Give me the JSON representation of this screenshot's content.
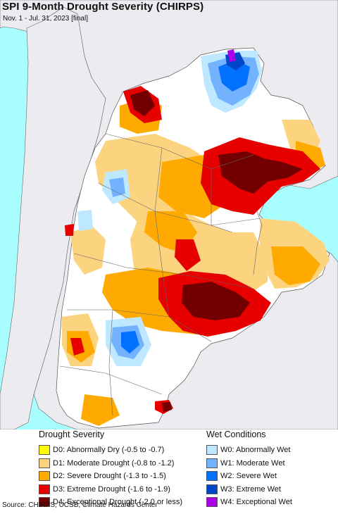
{
  "title": "SPI 9-Month Drought Severity (CHIRPS)",
  "subtitle": "Nov. 1 - Jul. 31, 2023 [final]",
  "legend": {
    "drought": {
      "heading": "Drought Severity",
      "items": [
        {
          "label": "D0: Abnormally Dry (-0.5 to -0.7)",
          "color": "#ffff00"
        },
        {
          "label": "D1: Moderate Drought (-0.8 to -1.2)",
          "color": "#fcd37f"
        },
        {
          "label": "D2: Severe Drought (-1.3 to -1.5)",
          "color": "#ffaa00"
        },
        {
          "label": "D3: Extreme Drought (-1.6 to -1.9)",
          "color": "#e60000"
        },
        {
          "label": "D4: Exceptional Drought (-2.0 or less)",
          "color": "#730000"
        }
      ]
    },
    "wet": {
      "heading": "Wet Conditions",
      "items": [
        {
          "label": "W0: Abnormally Wet",
          "color": "#bee8ff"
        },
        {
          "label": "W1: Moderate Wet",
          "color": "#73b2ff"
        },
        {
          "label": "W2: Severe Wet",
          "color": "#0070ff"
        },
        {
          "label": "W3: Extreme Wet",
          "color": "#0046c8"
        },
        {
          "label": "W4: Exceptional Wet",
          "color": "#a900e6"
        }
      ]
    }
  },
  "source": "Source: CHIRPS, UCSB, Climate Hazards Center",
  "colors": {
    "ocean": "#a9ffff",
    "outside_land": "#ececf0",
    "no_drought": "#ffffff"
  }
}
